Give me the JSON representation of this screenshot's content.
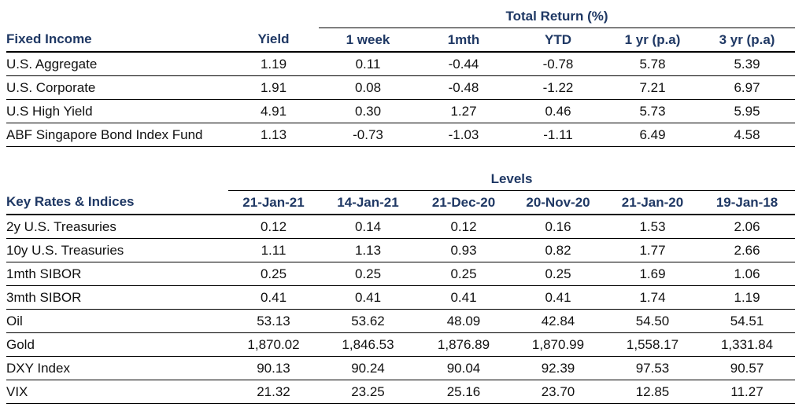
{
  "fixed_income": {
    "group_label": "Total Return (%)",
    "columns": [
      "Fixed Income",
      "Yield",
      "1 week",
      "1mth",
      "YTD",
      "1 yr (p.a)",
      "3 yr (p.a)"
    ],
    "rows": [
      [
        "U.S. Aggregate",
        "1.19",
        "0.11",
        "-0.44",
        "-0.78",
        "5.78",
        "5.39"
      ],
      [
        "U.S. Corporate",
        "1.91",
        "0.08",
        "-0.48",
        "-1.22",
        "7.21",
        "6.97"
      ],
      [
        "U.S High Yield",
        "4.91",
        "0.30",
        "1.27",
        "0.46",
        "5.73",
        "5.95"
      ],
      [
        "ABF Singapore Bond Index Fund",
        "1.13",
        "-0.73",
        "-1.03",
        "-1.11",
        "6.49",
        "4.58"
      ]
    ]
  },
  "key_rates": {
    "group_label": "Levels",
    "columns": [
      "Key Rates & Indices",
      "21-Jan-21",
      "14-Jan-21",
      "21-Dec-20",
      "20-Nov-20",
      "21-Jan-20",
      "19-Jan-18"
    ],
    "rows": [
      [
        "2y U.S. Treasuries",
        "0.12",
        "0.14",
        "0.12",
        "0.16",
        "1.53",
        "2.06"
      ],
      [
        "10y U.S. Treasuries",
        "1.11",
        "1.13",
        "0.93",
        "0.82",
        "1.77",
        "2.66"
      ],
      [
        "1mth SIBOR",
        "0.25",
        "0.25",
        "0.25",
        "0.25",
        "1.69",
        "1.06"
      ],
      [
        "3mth SIBOR",
        "0.41",
        "0.41",
        "0.41",
        "0.41",
        "1.74",
        "1.19"
      ],
      [
        "Oil",
        "53.13",
        "53.62",
        "48.09",
        "42.84",
        "54.50",
        "54.51"
      ],
      [
        "Gold",
        "1,870.02",
        "1,846.53",
        "1,876.89",
        "1,870.99",
        "1,558.17",
        "1,331.84"
      ],
      [
        "DXY Index",
        "90.13",
        "90.24",
        "90.04",
        "92.39",
        "97.53",
        "90.57"
      ],
      [
        "VIX",
        "21.32",
        "23.25",
        "25.16",
        "23.70",
        "12.85",
        "11.27"
      ]
    ]
  }
}
